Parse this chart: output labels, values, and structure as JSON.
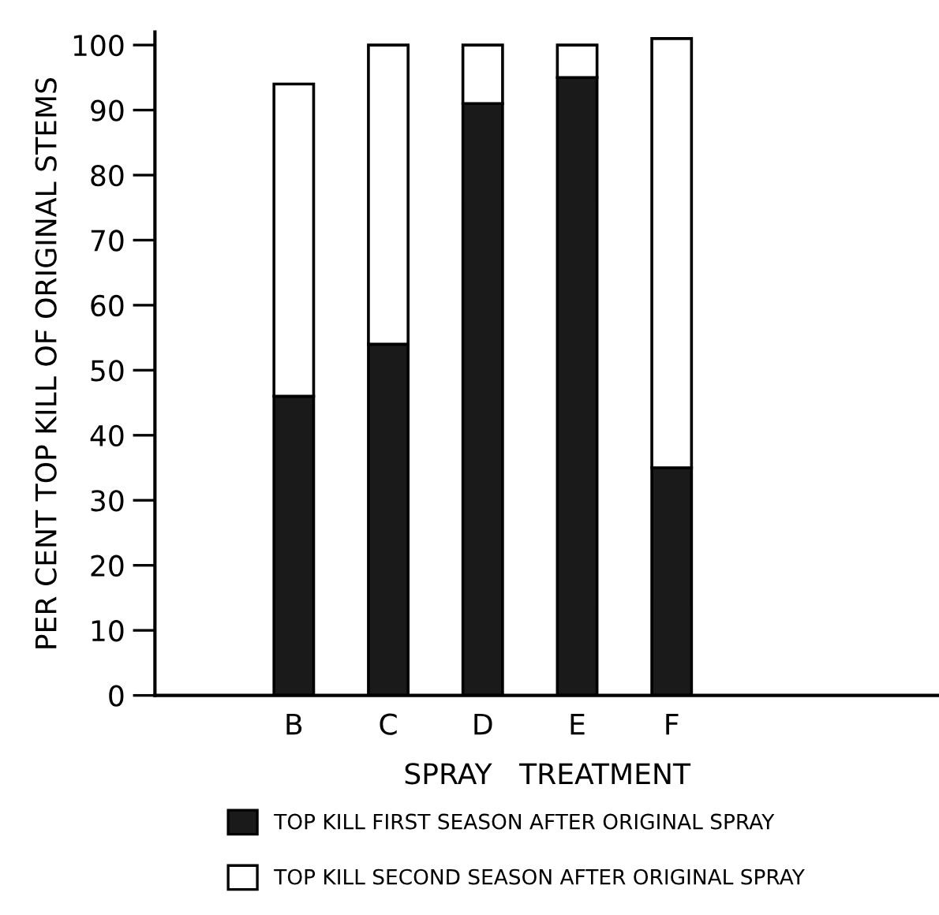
{
  "chart_data": {
    "type": "bar",
    "stacked": true,
    "xlabel": "SPRAY   TREATMENT",
    "ylabel": "PER CENT TOP KILL OF ORIGINAL STEMS",
    "categories": [
      "B",
      "C",
      "D",
      "E",
      "F"
    ],
    "series": [
      {
        "name": "TOP KILL FIRST SEASON AFTER ORIGINAL SPRAY",
        "color": "#1a1a1a",
        "values": [
          46,
          54,
          91,
          95,
          35
        ]
      },
      {
        "name": "TOP KILL SECOND SEASON AFTER ORIGINAL SPRAY",
        "color": "#ffffff",
        "values": [
          48,
          46,
          9,
          5,
          66
        ]
      }
    ],
    "ylim": [
      0,
      102
    ],
    "yticks": [
      0,
      10,
      20,
      30,
      40,
      50,
      60,
      70,
      80,
      90,
      100
    ],
    "grid": false,
    "legend": "bottom"
  }
}
